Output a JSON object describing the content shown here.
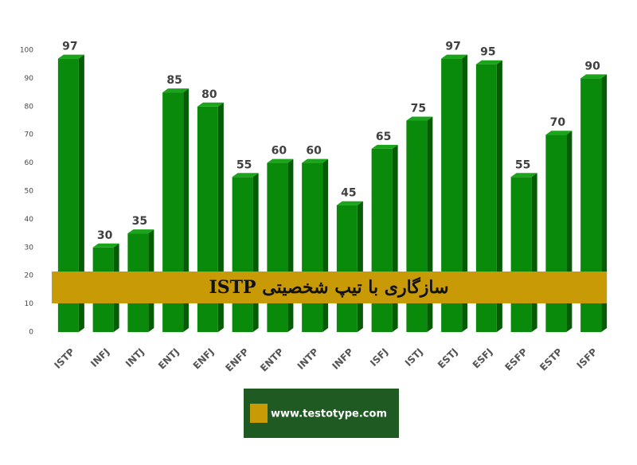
{
  "chart_data": {
    "type": "bar3d",
    "title": "سازگاری با تیپ شخصیتی ISTP",
    "source": "www.testotype.com",
    "categories": [
      "ISTP",
      "INFJ",
      "INTJ",
      "ENTJ",
      "ENFJ",
      "ENFP",
      "ENTP",
      "INTP",
      "INFP",
      "ISFJ",
      "ISTJ",
      "ESTJ",
      "ESFJ",
      "ESFP",
      "ESTP",
      "ISFP"
    ],
    "values": [
      97,
      30,
      35,
      85,
      80,
      55,
      60,
      60,
      45,
      65,
      75,
      97,
      95,
      55,
      70,
      90
    ],
    "color": "#0a8a0a",
    "ylim": [
      0,
      100
    ],
    "yticks": [
      0,
      10,
      20,
      30,
      40,
      50,
      60,
      70,
      80,
      90,
      100
    ],
    "grid": false
  }
}
